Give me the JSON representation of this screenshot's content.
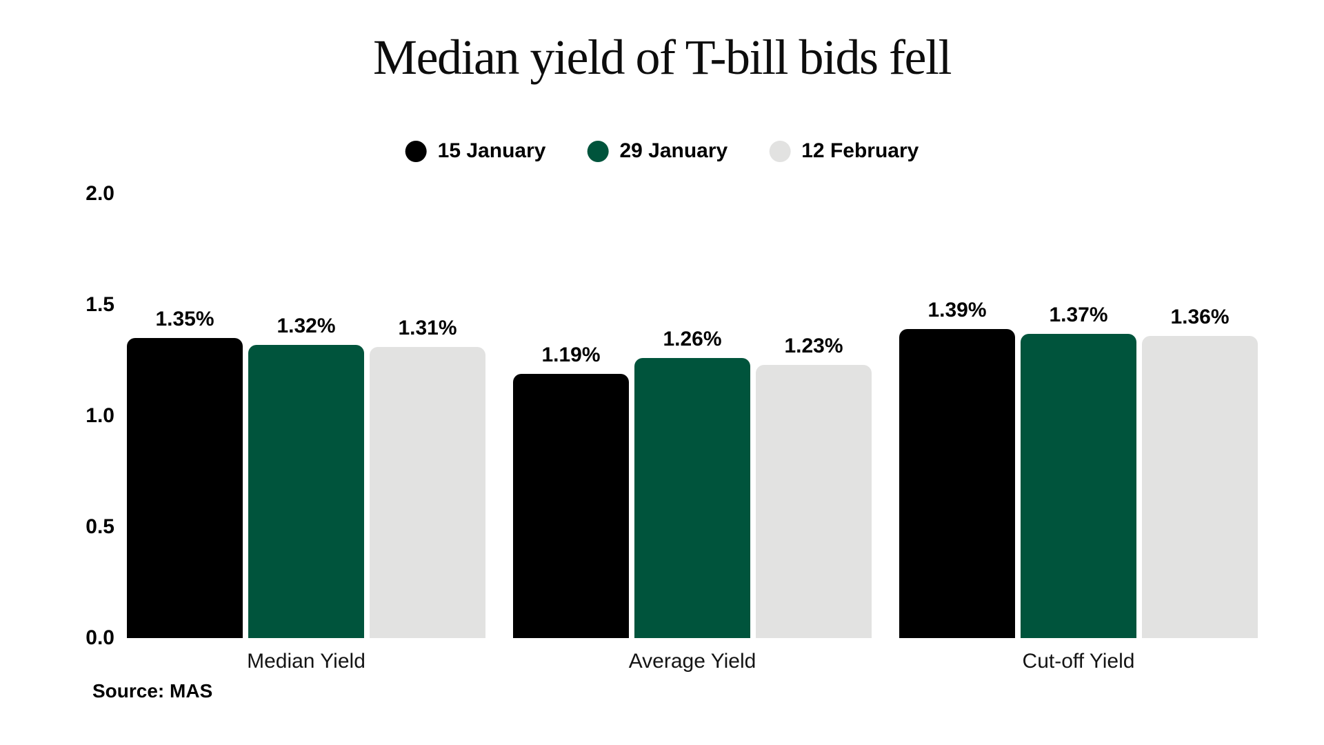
{
  "chart_data": {
    "type": "bar",
    "title": "Median yield of T-bill bids fell",
    "source": "Source: MAS",
    "categories": [
      "Median Yield",
      "Average Yield",
      "Cut-off Yield"
    ],
    "series": [
      {
        "name": "15 January",
        "color": "#000000",
        "values": [
          1.35,
          1.19,
          1.39
        ],
        "labels": [
          "1.35%",
          "1.19%",
          "1.39%"
        ]
      },
      {
        "name": "29 January",
        "color": "#00543c",
        "values": [
          1.32,
          1.26,
          1.37
        ],
        "labels": [
          "1.32%",
          "1.26%",
          "1.37%"
        ]
      },
      {
        "name": "12 February",
        "color": "#e2e2e1",
        "values": [
          1.31,
          1.23,
          1.36
        ],
        "labels": [
          "1.31%",
          "1.23%",
          "1.36%"
        ]
      }
    ],
    "yticks": [
      "2.0",
      "1.5",
      "1.0",
      "0.5",
      "0.0"
    ],
    "ylim": [
      0,
      2.0
    ],
    "unit": "%",
    "grid": false,
    "legend_position": "top"
  }
}
